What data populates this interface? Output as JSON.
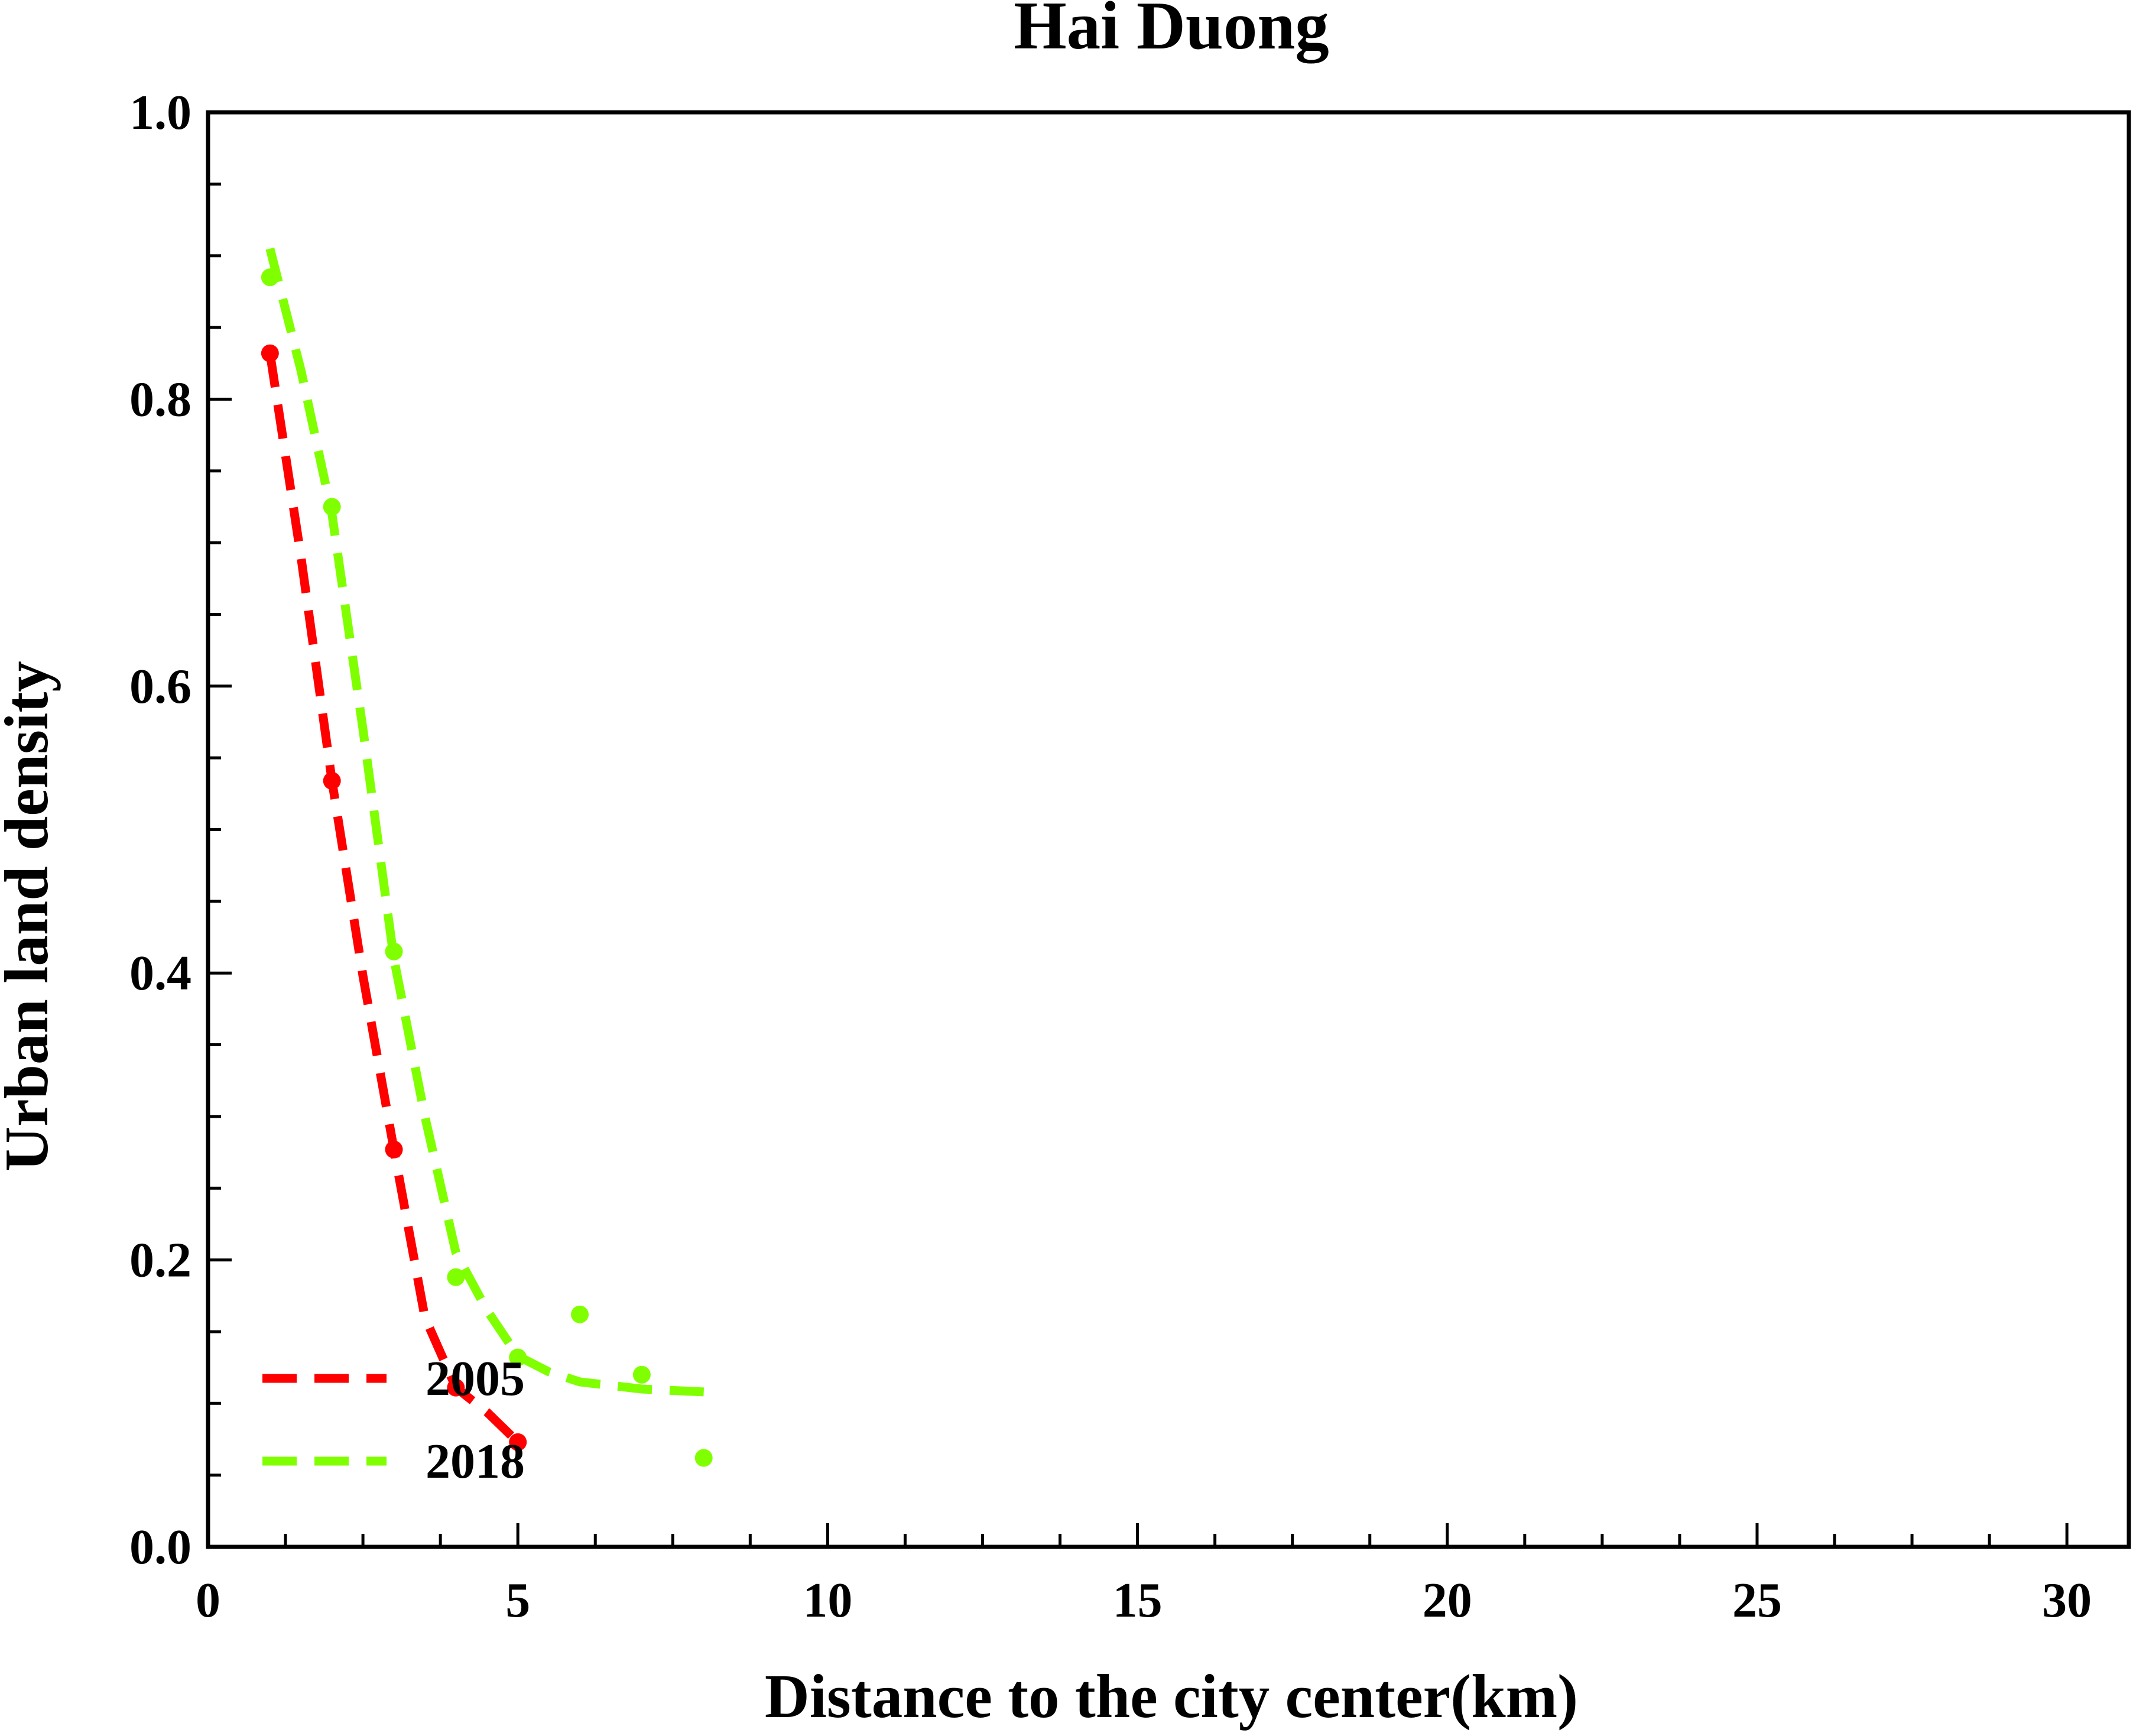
{
  "chart_data": {
    "type": "scatter",
    "title": "Hai Duong",
    "xlabel": "Distance to the city center(km)",
    "ylabel": "Urban land density",
    "xlim": [
      0,
      31
    ],
    "ylim": [
      0,
      1.0
    ],
    "xticks": [
      0,
      5,
      10,
      15,
      20,
      25,
      30
    ],
    "xtick_labels": [
      "0",
      "5",
      "10",
      "15",
      "20",
      "25",
      "30"
    ],
    "yticks": [
      0.0,
      0.2,
      0.4,
      0.6,
      0.8,
      1.0
    ],
    "ytick_labels": [
      "0.0",
      "0.2",
      "0.4",
      "0.6",
      "0.8",
      "1.0"
    ],
    "grid": false,
    "legend_position": "bottom-left",
    "series": [
      {
        "name": "2005",
        "color": "#ff0000",
        "points": {
          "x": [
            1,
            2,
            3,
            4,
            5
          ],
          "y": [
            0.832,
            0.534,
            0.277,
            0.111,
            0.073
          ]
        },
        "fit": {
          "x": [
            1.0,
            1.5,
            2.0,
            2.5,
            3.0,
            3.5,
            4.0,
            4.5,
            5.0
          ],
          "y": [
            0.832,
            0.69,
            0.534,
            0.398,
            0.277,
            0.16,
            0.111,
            0.094,
            0.073
          ]
        }
      },
      {
        "name": "2018",
        "color": "#80ff00",
        "points": {
          "x": [
            1,
            2,
            3,
            4,
            5,
            6,
            7,
            8
          ],
          "y": [
            0.885,
            0.725,
            0.415,
            0.188,
            0.132,
            0.162,
            0.12,
            0.062
          ]
        },
        "fit": {
          "x": [
            1.0,
            1.5,
            2.0,
            2.5,
            3.0,
            3.5,
            4.0,
            4.5,
            5.0,
            5.5,
            6.0,
            7.0,
            8.0
          ],
          "y": [
            0.905,
            0.82,
            0.72,
            0.57,
            0.41,
            0.3,
            0.205,
            0.165,
            0.133,
            0.122,
            0.115,
            0.11,
            0.108
          ]
        }
      }
    ]
  }
}
